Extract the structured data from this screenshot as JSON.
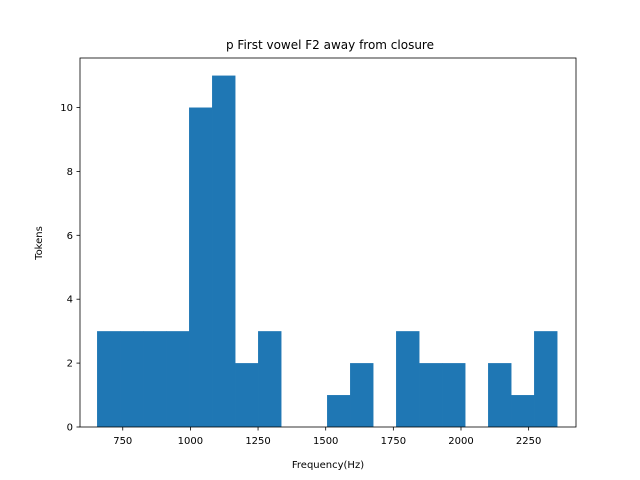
{
  "chart_data": {
    "type": "bar",
    "title": "p First vowel F2 away from closure",
    "xlabel": "Frequency(Hz)",
    "ylabel": "Tokens",
    "xlim": [
      592,
      2425
    ],
    "ylim": [
      0,
      11.55
    ],
    "xticks": [
      750,
      1000,
      1250,
      1500,
      1750,
      2000,
      2250
    ],
    "yticks": [
      0,
      2,
      4,
      6,
      8,
      10
    ],
    "grid": false,
    "color": "#1f77b4",
    "bins": [
      {
        "x0": 655,
        "x1": 740,
        "count": 3
      },
      {
        "x0": 740,
        "x1": 825,
        "count": 3
      },
      {
        "x0": 825,
        "x1": 910,
        "count": 3
      },
      {
        "x0": 910,
        "x1": 995,
        "count": 3
      },
      {
        "x0": 995,
        "x1": 1080,
        "count": 10
      },
      {
        "x0": 1080,
        "x1": 1165,
        "count": 11
      },
      {
        "x0": 1165,
        "x1": 1250,
        "count": 2
      },
      {
        "x0": 1250,
        "x1": 1335,
        "count": 3
      },
      {
        "x0": 1335,
        "x1": 1420,
        "count": 0
      },
      {
        "x0": 1420,
        "x1": 1505,
        "count": 0
      },
      {
        "x0": 1505,
        "x1": 1590,
        "count": 1
      },
      {
        "x0": 1590,
        "x1": 1675,
        "count": 2
      },
      {
        "x0": 1675,
        "x1": 1760,
        "count": 0
      },
      {
        "x0": 1760,
        "x1": 1845,
        "count": 3
      },
      {
        "x0": 1845,
        "x1": 1930,
        "count": 2
      },
      {
        "x0": 1930,
        "x1": 2015,
        "count": 2
      },
      {
        "x0": 2015,
        "x1": 2100,
        "count": 0
      },
      {
        "x0": 2100,
        "x1": 2185,
        "count": 2
      },
      {
        "x0": 2185,
        "x1": 2270,
        "count": 1
      },
      {
        "x0": 2270,
        "x1": 2355,
        "count": 3
      }
    ]
  }
}
